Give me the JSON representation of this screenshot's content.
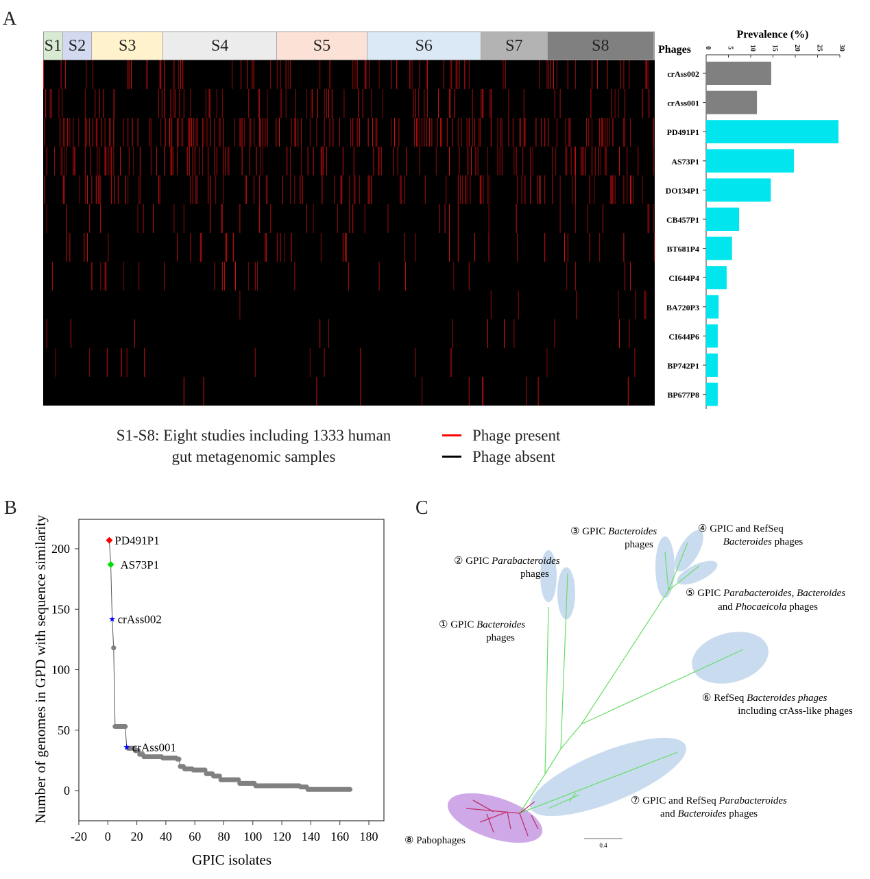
{
  "panels": {
    "a": "A",
    "b": "B",
    "c": "C"
  },
  "panel_a": {
    "studies": [
      {
        "label": "S1",
        "color": "#d9ead3",
        "weight": 27
      },
      {
        "label": "S2",
        "color": "#d3d9f0",
        "weight": 42
      },
      {
        "label": "S3",
        "color": "#fff2cc",
        "weight": 104
      },
      {
        "label": "S4",
        "color": "#ececec",
        "weight": 167
      },
      {
        "label": "S5",
        "color": "#fbe1d6",
        "weight": 132
      },
      {
        "label": "S6",
        "color": "#dbe8f6",
        "weight": 167
      },
      {
        "label": "S7",
        "color": "#b3b3b3",
        "weight": 97
      },
      {
        "label": "S8",
        "color": "#808080",
        "weight": 156
      }
    ],
    "caption_line1": "S1-S8: Eight studies including 1333 human",
    "caption_line2": "gut metagenomic samples",
    "legend": [
      {
        "label": "Phage present",
        "color": "#ff0000"
      },
      {
        "label": "Phage absent",
        "color": "#000000"
      }
    ],
    "present_color": "#e01010",
    "absent_color": "#000000"
  },
  "chart_data": [
    {
      "type": "bar",
      "orientation": "horizontal",
      "title": "Prevalence (%)",
      "category_header": "Phages",
      "categories": [
        "crAss002",
        "crAss001",
        "PD491P1",
        "AS73P1",
        "DO134P1",
        "CB457P1",
        "BT681P4",
        "CI644P4",
        "BA720P3",
        "CI644P6",
        "BP742P1",
        "BP677P8"
      ],
      "values": [
        14.6,
        11.4,
        29.7,
        19.7,
        14.5,
        7.4,
        5.8,
        4.6,
        2.8,
        2.6,
        2.6,
        2.6
      ],
      "colors": [
        "#808080",
        "#808080",
        "#00e5ee",
        "#00e5ee",
        "#00e5ee",
        "#00e5ee",
        "#00e5ee",
        "#00e5ee",
        "#00e5ee",
        "#00e5ee",
        "#00e5ee",
        "#00e5ee"
      ],
      "xlim": [
        0,
        30
      ],
      "xticks": [
        "0",
        "5",
        "10",
        "15",
        "20",
        "25",
        "30"
      ]
    },
    {
      "type": "scatter",
      "xlabel": "GPIC isolates",
      "ylabel": "Number of genomes in GPD with sequence similarity",
      "xlim": [
        -20,
        190
      ],
      "ylim": [
        -25,
        224
      ],
      "xticks": [
        "-20",
        "0",
        "20",
        "40",
        "60",
        "80",
        "100",
        "120",
        "140",
        "160",
        "180"
      ],
      "yticks": [
        "0",
        "50",
        "100",
        "150",
        "200"
      ],
      "highlighted": [
        {
          "x": 1,
          "y": 207,
          "label": "PD491P1",
          "color": "#ff0000",
          "marker": "diamond"
        },
        {
          "x": 2,
          "y": 187,
          "label": "AS73P1",
          "color": "#00dd00",
          "marker": "diamond"
        },
        {
          "x": 3,
          "y": 142,
          "label": "crAss002",
          "color": "#0000ff",
          "marker": "star"
        },
        {
          "x": 13,
          "y": 36,
          "label": "crAss001",
          "color": "#0000ff",
          "marker": "star"
        }
      ],
      "point_color": "#808080",
      "runs": [
        [
          4,
          4,
          118
        ],
        [
          5,
          12,
          53
        ],
        [
          14,
          18,
          35
        ],
        [
          19,
          21,
          33
        ],
        [
          22,
          24,
          30
        ],
        [
          25,
          37,
          28
        ],
        [
          38,
          47,
          27
        ],
        [
          48,
          49,
          26
        ],
        [
          50,
          52,
          20
        ],
        [
          53,
          58,
          18
        ],
        [
          59,
          67,
          17
        ],
        [
          68,
          72,
          14
        ],
        [
          73,
          77,
          12
        ],
        [
          78,
          90,
          9
        ],
        [
          91,
          101,
          6
        ],
        [
          102,
          132,
          4
        ],
        [
          133,
          137,
          3
        ],
        [
          138,
          167,
          1
        ]
      ]
    }
  ],
  "panel_c": {
    "scale_label": "0.4",
    "clades": [
      {
        "num": "①",
        "parts": [
          [
            "GPIC ",
            0
          ],
          [
            "Bacteroides",
            1
          ]
        ],
        "line2": [
          [
            "phages",
            0
          ]
        ]
      },
      {
        "num": "②",
        "parts": [
          [
            "GPIC ",
            0
          ],
          [
            "Parabacteroides",
            1
          ]
        ],
        "line2": [
          [
            "phages",
            0
          ]
        ]
      },
      {
        "num": "③",
        "parts": [
          [
            "GPIC ",
            0
          ],
          [
            "Bacteroides",
            1
          ]
        ],
        "line2": [
          [
            "phages",
            0
          ]
        ]
      },
      {
        "num": "④",
        "parts": [
          [
            "GPIC and RefSeq",
            0
          ]
        ],
        "line2": [
          [
            "Bacteroides",
            1
          ],
          [
            " phages",
            0
          ]
        ]
      },
      {
        "num": "⑤",
        "parts": [
          [
            "GPIC ",
            0
          ],
          [
            "Parabacteroides, Bacteroides",
            1
          ]
        ],
        "line2": [
          [
            "and ",
            0
          ],
          [
            "Phocaeicola",
            1
          ],
          [
            " phages",
            0
          ]
        ]
      },
      {
        "num": "⑥",
        "parts": [
          [
            "RefSeq ",
            0
          ],
          [
            "Bacteroides phages",
            1
          ]
        ],
        "line2": [
          [
            "including crAss-like phages",
            0
          ]
        ]
      },
      {
        "num": "⑦",
        "parts": [
          [
            "GPIC and RefSeq ",
            0
          ],
          [
            "Parabacteroides",
            1
          ]
        ],
        "line2": [
          [
            "and ",
            0
          ],
          [
            "Bacteroides",
            1
          ],
          [
            " phages",
            0
          ]
        ]
      },
      {
        "num": "⑧",
        "parts": [
          [
            "Pabophages",
            0
          ]
        ],
        "line2": []
      }
    ],
    "branch_color": "#66dd66",
    "pabo_color": "#c0306a"
  }
}
